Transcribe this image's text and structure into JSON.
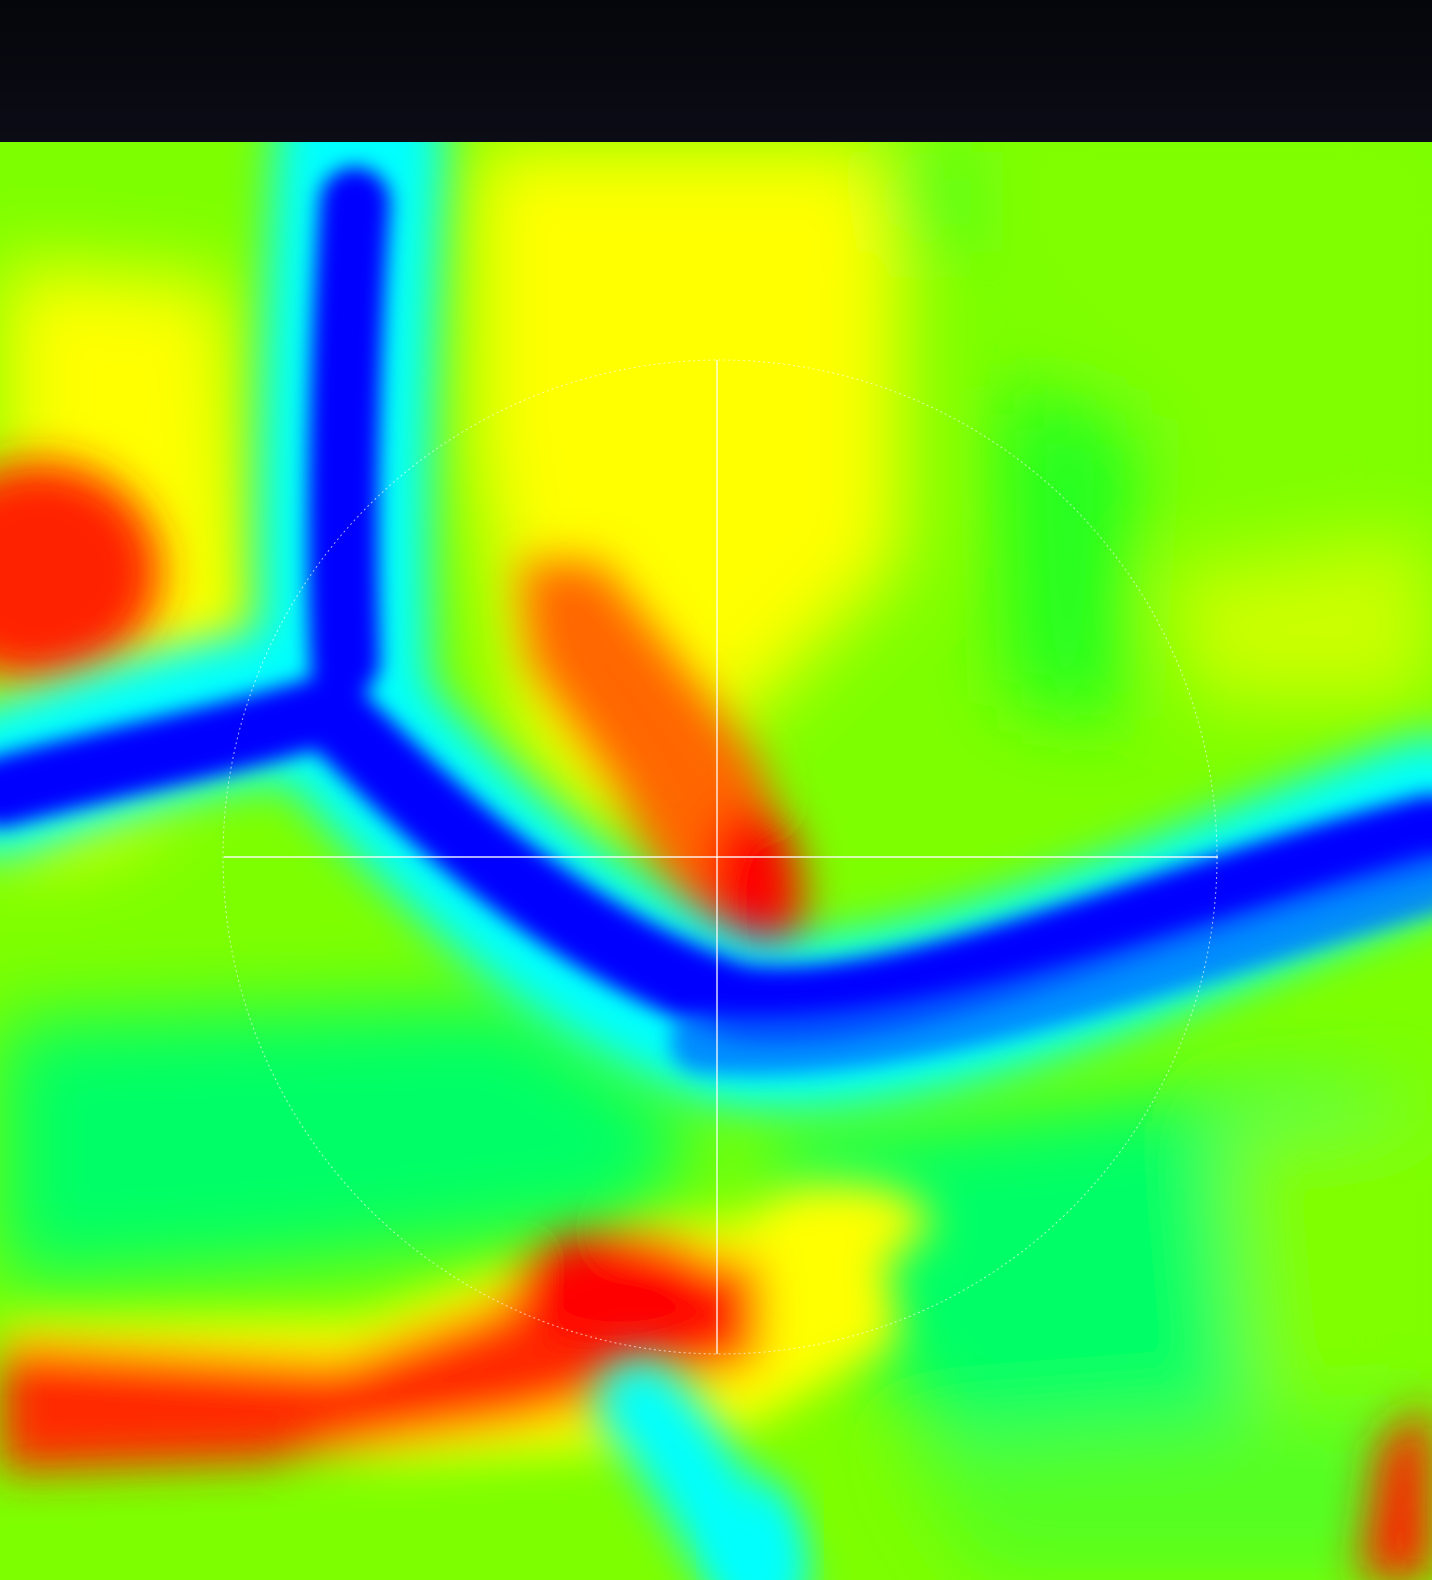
{
  "app": {
    "top_bar_color": "#0b0c15",
    "view": "heatmap-viewport"
  },
  "colormap": {
    "name": "jet",
    "stops": [
      "#0000ff",
      "#00ffff",
      "#00ff66",
      "#80ff00",
      "#ffff00",
      "#ff6600",
      "#ff0000"
    ]
  },
  "crosshair": {
    "color": "#ffffff",
    "icon": "crosshair-icon"
  },
  "range_circle": {
    "color": "#ffffff",
    "style": "dashed"
  }
}
